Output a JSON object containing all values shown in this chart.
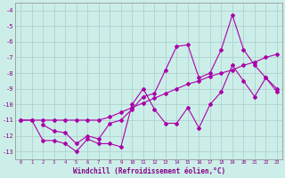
{
  "background_color": "#cceee8",
  "grid_color": "#aacccc",
  "line_color": "#aa00aa",
  "x_ticks": [
    0,
    1,
    2,
    3,
    4,
    5,
    6,
    7,
    8,
    9,
    10,
    11,
    12,
    13,
    14,
    15,
    16,
    17,
    18,
    19,
    20,
    21,
    22,
    23
  ],
  "xlabel": "Windchill (Refroidissement éolien,°C)",
  "ylabel_ticks": [
    -4,
    -5,
    -6,
    -7,
    -8,
    -9,
    -10,
    -11,
    -12,
    -13
  ],
  "xlim": [
    -0.5,
    23.5
  ],
  "ylim": [
    -13.5,
    -3.5
  ],
  "series1_x": [
    0,
    1,
    2,
    3,
    4,
    5,
    6,
    7,
    8,
    9,
    10,
    11,
    12,
    13,
    14,
    15,
    16,
    17,
    18,
    19,
    20,
    21,
    22,
    23
  ],
  "series1_y": [
    -11.0,
    -11.0,
    -11.0,
    -11.0,
    -11.0,
    -11.0,
    -11.0,
    -11.0,
    -10.8,
    -10.5,
    -10.2,
    -9.9,
    -9.6,
    -9.3,
    -9.0,
    -8.7,
    -8.5,
    -8.2,
    -8.0,
    -7.8,
    -7.5,
    -7.3,
    -7.0,
    -6.8
  ],
  "series2_x": [
    0,
    1,
    2,
    3,
    4,
    5,
    6,
    7,
    8,
    9,
    10,
    11,
    12,
    13,
    14,
    15,
    16,
    17,
    18,
    19,
    20,
    21,
    22,
    23
  ],
  "series2_y": [
    -11.0,
    -11.0,
    -12.3,
    -12.3,
    -12.5,
    -13.0,
    -12.2,
    -12.5,
    -12.5,
    -12.7,
    -10.0,
    -9.0,
    -10.3,
    -11.2,
    -11.2,
    -10.2,
    -11.5,
    -10.0,
    -9.2,
    -7.5,
    -8.5,
    -9.5,
    -8.3,
    -9.2
  ],
  "series3_x": [
    2,
    3,
    4,
    5,
    6,
    7,
    8,
    9,
    10,
    11,
    12,
    13,
    14,
    15,
    16,
    17,
    18,
    19,
    20,
    21,
    22,
    23
  ],
  "series3_y": [
    -11.3,
    -11.7,
    -11.8,
    -12.5,
    -12.0,
    -12.2,
    -11.2,
    -11.0,
    -10.3,
    -9.5,
    -9.3,
    -7.8,
    -6.3,
    -6.2,
    -8.3,
    -8.0,
    -6.5,
    -4.3,
    -6.5,
    -7.5,
    -8.3,
    -9.0
  ]
}
